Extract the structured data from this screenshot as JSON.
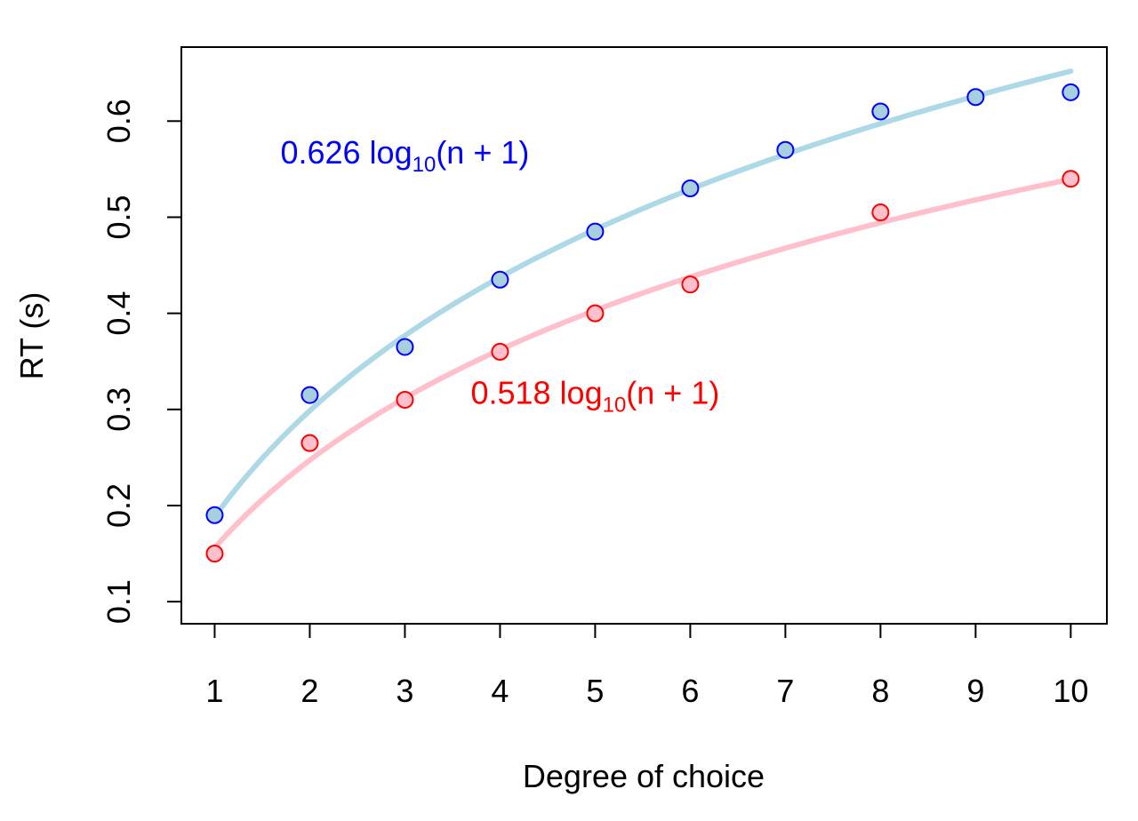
{
  "chart_data": {
    "type": "scatter",
    "xlabel": "Degree of choice",
    "ylabel": "RT (s)",
    "xlim": [
      0.65,
      10.38
    ],
    "ylim": [
      0.077,
      0.677
    ],
    "xticks": [
      1,
      2,
      3,
      4,
      5,
      6,
      7,
      8,
      9,
      10
    ],
    "xtick_labels": [
      "1",
      "2",
      "3",
      "4",
      "5",
      "6",
      "7",
      "8",
      "9",
      "10"
    ],
    "yticks": [
      0.1,
      0.2,
      0.3,
      0.4,
      0.5,
      0.6
    ],
    "ytick_labels": [
      "0.1",
      "0.2",
      "0.3",
      "0.4",
      "0.5",
      "0.6"
    ],
    "grid": false,
    "series": [
      {
        "x": [
          1,
          2,
          3,
          4,
          5,
          6,
          7,
          8,
          9,
          10
        ],
        "values": [
          0.19,
          0.315,
          0.365,
          0.435,
          0.485,
          0.53,
          0.57,
          0.61,
          0.625,
          0.63
        ],
        "point_fill": "#a8cfe0",
        "point_stroke": "#0000ff",
        "fit": {
          "coefficient": 0.626,
          "formula": "log10(n+1)",
          "color": "#add8e6"
        }
      },
      {
        "x": [
          1,
          2,
          3,
          4,
          5,
          6,
          8,
          10
        ],
        "values": [
          0.15,
          0.265,
          0.31,
          0.36,
          0.4,
          0.43,
          0.505,
          0.54
        ],
        "point_fill": "#ffc0cb",
        "point_stroke": "#ff0000",
        "fit": {
          "coefficient": 0.518,
          "formula": "log10(n+1)",
          "color": "#ffc0cb"
        }
      }
    ],
    "annotations": [
      {
        "coef": "0.626",
        "log": "log",
        "sub": "10",
        "arg": "(n + 1)",
        "color": "#0000ff",
        "x": 3.0,
        "y": 0.568
      },
      {
        "coef": "0.518",
        "log": "log",
        "sub": "10",
        "arg": "(n + 1)",
        "color": "#ff0000",
        "x": 5.0,
        "y": 0.318
      }
    ]
  }
}
